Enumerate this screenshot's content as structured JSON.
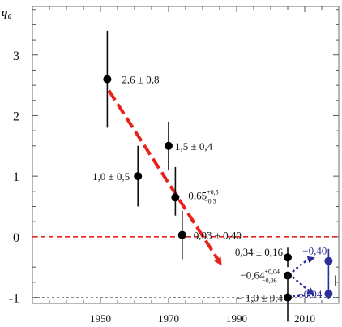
{
  "chart_data": {
    "type": "scatter",
    "ylabel": "q₀",
    "xlabel": "",
    "xlim": [
      1930,
      2020
    ],
    "ylim": [
      -1.1,
      3.8
    ],
    "x_ticks": [
      "1950",
      "1970",
      "1990",
      "2010"
    ],
    "x_tick_values": [
      1950,
      1970,
      1990,
      2010
    ],
    "y_ticks": [
      "3",
      "2",
      "1",
      "0",
      "-1"
    ],
    "y_tick_values": [
      3,
      2,
      1,
      0,
      -1
    ],
    "grid": false,
    "zero_line_color": "#e8231e",
    "trend_arrow_color": "#e8231e",
    "point_color": "#000000",
    "secondary_color": "#2b2f9a",
    "points": [
      {
        "x": 1952,
        "y": 2.6,
        "y_low": 1.8,
        "y_high": 3.4,
        "label": "2,6 ± 0,8"
      },
      {
        "x": 1961,
        "y": 1.0,
        "y_low": 0.5,
        "y_high": 1.5,
        "label": "1,0 ± 0,5"
      },
      {
        "x": 1970,
        "y": 1.5,
        "y_low": 1.1,
        "y_high": 1.9,
        "label": "1,5 ± 0,4"
      },
      {
        "x": 1972,
        "y": 0.65,
        "y_low": 0.35,
        "y_high": 1.15,
        "label": "0,65",
        "label_sup": "+0,5",
        "label_sub": "−0,3"
      },
      {
        "x": 1974,
        "y": 0.03,
        "y_low": -0.37,
        "y_high": 0.43,
        "label": "0,03 ± 0,40"
      },
      {
        "x": 2005,
        "y": -0.34,
        "y_low": -0.5,
        "y_high": -0.18,
        "label": "− 0,34 ± 0,16"
      },
      {
        "x": 2005,
        "y": -0.64,
        "y_low": -0.7,
        "y_high": -0.6,
        "label": "−0,64",
        "label_sup": "+0,04",
        "label_sub": "−0,06"
      },
      {
        "x": 2005,
        "y": -1.0,
        "y_low": -1.4,
        "y_high": -0.6,
        "label": "− 1,0 ± 0,4"
      }
    ],
    "secondary_labels": [
      "−0,40",
      "−0,94"
    ],
    "edge_glyph": "|"
  }
}
